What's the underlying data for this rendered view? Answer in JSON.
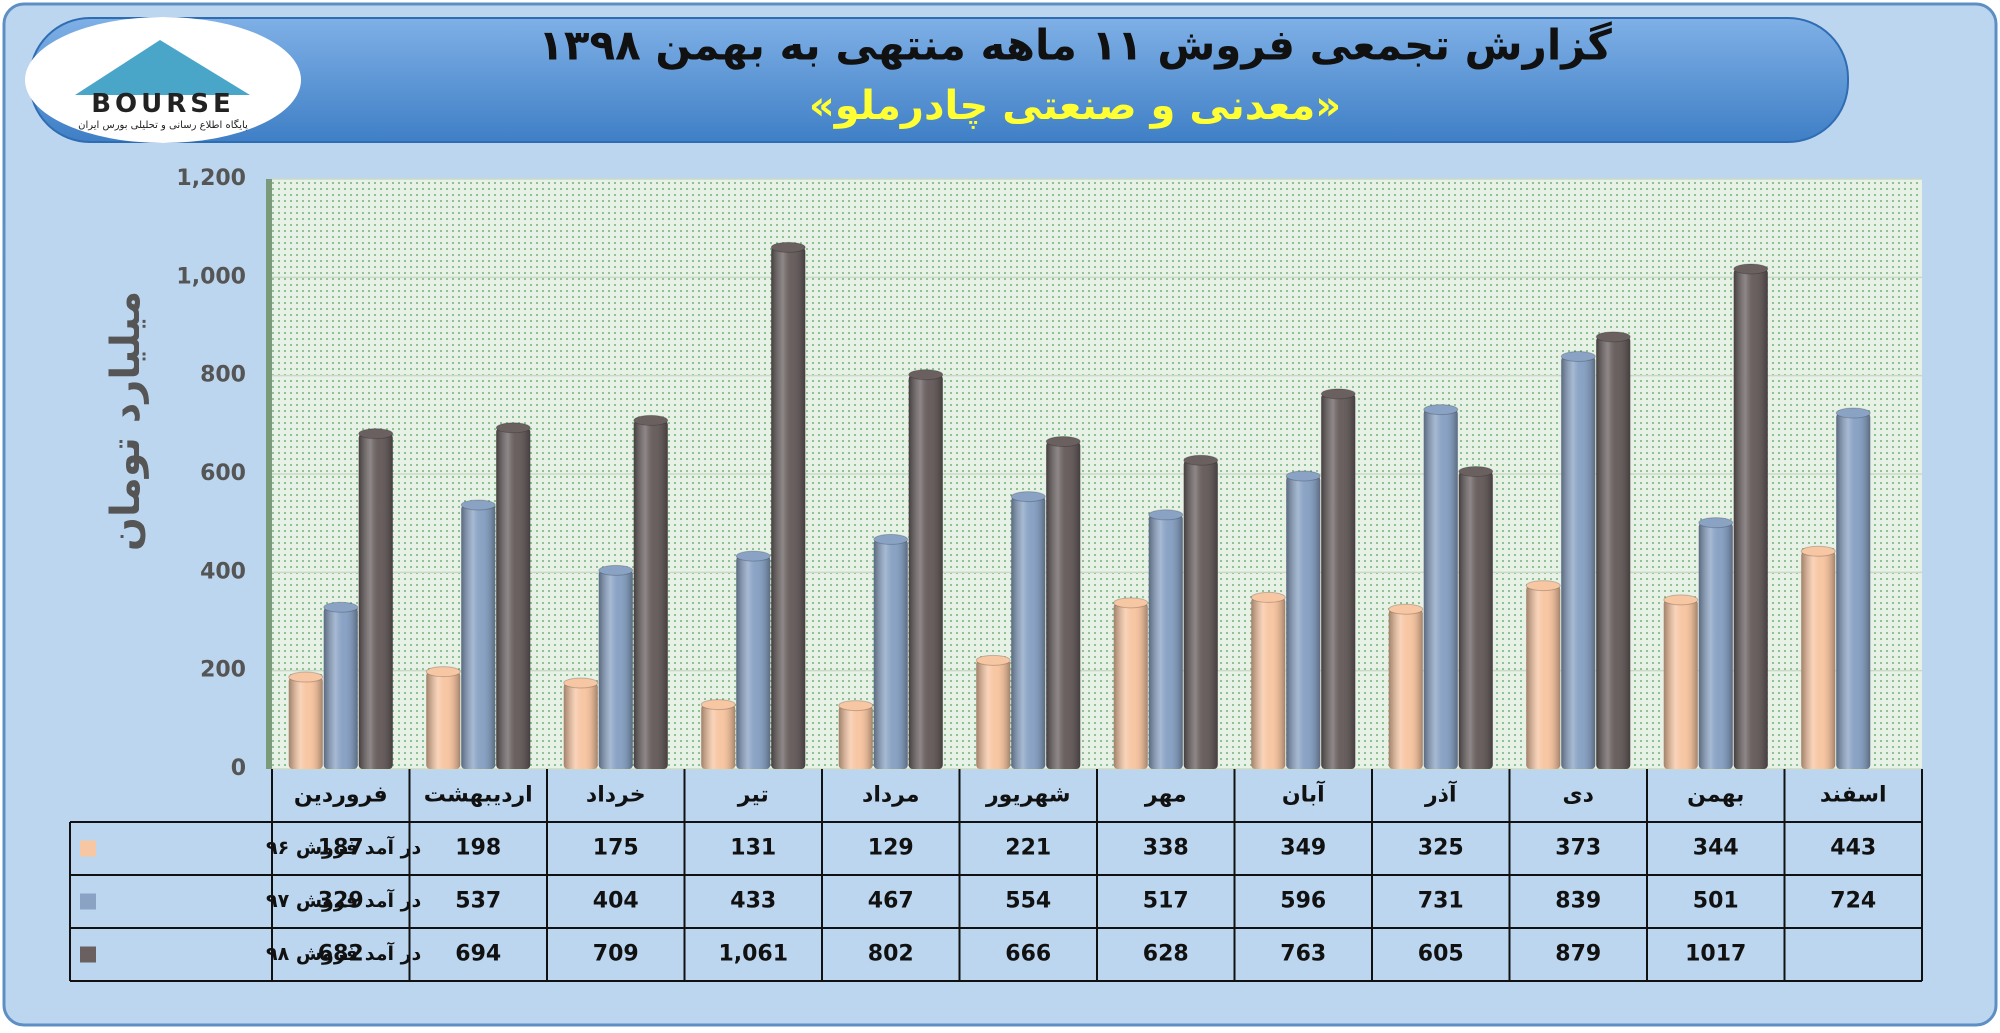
{
  "logo": {
    "text": "BOURSE",
    "subtext": "پایگاه اطلاع رسانی و تحلیلی بورس ایران"
  },
  "chart_data": {
    "type": "bar",
    "title": "گزارش تجمعی فروش ۱۱ ماهه منتهی به بهمن ۱۳۹۸",
    "subtitle": "«معدنی و صنعتی چادرملو»",
    "y_label": "میلیارد تومان",
    "categories": [
      "فروردین",
      "اردیبهشت",
      "خرداد",
      "تیر",
      "مرداد",
      "شهریور",
      "مهر",
      "آبان",
      "آذر",
      "دی",
      "بهمن",
      "اسفند"
    ],
    "series": [
      {
        "name": "در آمد فروش ۹۶",
        "color": "#f7c6a3",
        "values": [
          187,
          198,
          175,
          131,
          129,
          221,
          338,
          349,
          325,
          373,
          344,
          443
        ]
      },
      {
        "name": "در آمد فروش ۹۷",
        "color": "#8aa3c4",
        "values": [
          329,
          537,
          404,
          433,
          467,
          554,
          517,
          596,
          731,
          839,
          501,
          724
        ]
      },
      {
        "name": "در آمد فروش ۹۸",
        "color": "#6a6060",
        "values": [
          682,
          694,
          709,
          1061,
          802,
          666,
          628,
          763,
          605,
          879,
          1017,
          null
        ],
        "value_labels": [
          "682",
          "694",
          "709",
          "1,061",
          "802",
          "666",
          "628",
          "763",
          "605",
          "879",
          "1017",
          null
        ]
      }
    ],
    "ylim": [
      0,
      1200
    ],
    "yticks": [
      0,
      200,
      400,
      600,
      800,
      {
        "value": 1000,
        "label": "1,000"
      },
      {
        "value": 1200,
        "label": "1,200"
      }
    ],
    "grid": true
  }
}
